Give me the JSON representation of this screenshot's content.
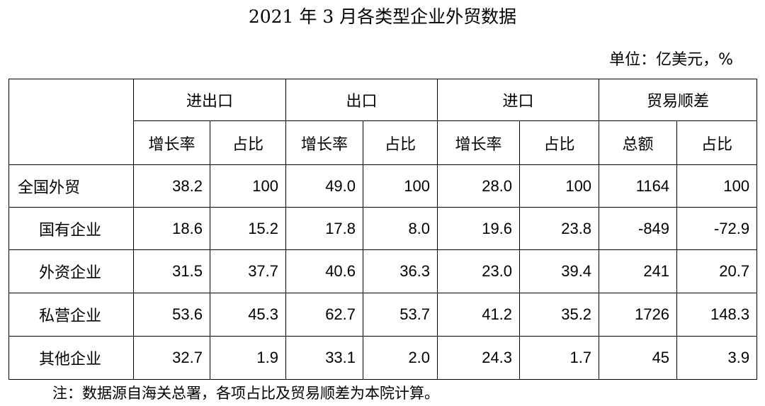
{
  "title": "2021 年 3 月各类型企业外贸数据",
  "unit": "单位：亿美元，%",
  "table": {
    "groups": [
      "进出口",
      "出口",
      "进口",
      "贸易顺差"
    ],
    "subheaders": [
      "增长率",
      "占比",
      "增长率",
      "占比",
      "增长率",
      "占比",
      "总额",
      "占比"
    ],
    "rows": [
      [
        "全国外贸",
        "38.2",
        "100",
        "49.0",
        "100",
        "28.0",
        "100",
        "1164",
        "100"
      ],
      [
        "国有企业",
        "18.6",
        "15.2",
        "17.8",
        "8.0",
        "19.6",
        "23.8",
        "-849",
        "-72.9"
      ],
      [
        "外资企业",
        "31.5",
        "37.7",
        "40.6",
        "36.3",
        "23.0",
        "39.4",
        "241",
        "20.7"
      ],
      [
        "私营企业",
        "53.6",
        "45.3",
        "62.7",
        "53.7",
        "41.2",
        "35.2",
        "1726",
        "148.3"
      ],
      [
        "其他企业",
        "32.7",
        "1.9",
        "33.1",
        "2.0",
        "24.3",
        "1.7",
        "45",
        "3.9"
      ]
    ]
  },
  "note": "注：数据源自海关总署，各项占比及贸易顺差为本院计算。"
}
